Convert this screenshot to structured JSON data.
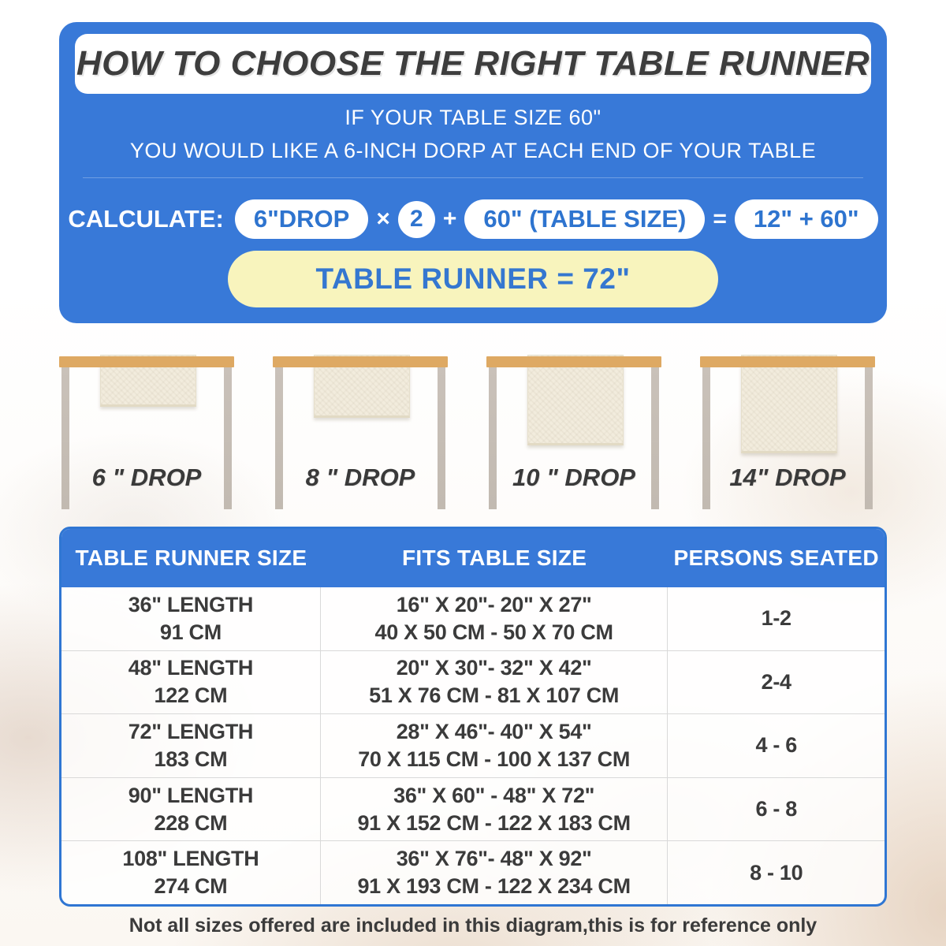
{
  "hero": {
    "title": "HOW TO CHOOSE THE RIGHT TABLE RUNNER",
    "subtitle_line1": "IF YOUR TABLE SIZE 60\"",
    "subtitle_line2": "YOU WOULD LIKE A 6-INCH DORP AT EACH END OF YOUR TABLE",
    "calc_label": "CALCULATE:",
    "drop_pill": "6\"DROP",
    "times_sign": "×",
    "multiplier": "2",
    "plus_sign": "+",
    "table_size_pill": "60\" (TABLE SIZE)",
    "equals_sign": "=",
    "sum_pill": "12\" + 60\"",
    "result": "TABLE RUNNER = 72\""
  },
  "drops": [
    {
      "label": "6 \" DROP"
    },
    {
      "label": "8 \" DROP"
    },
    {
      "label": "10 \" DROP"
    },
    {
      "label": "14\" DROP"
    }
  ],
  "size_table": {
    "headers": [
      "TABLE RUNNER SIZE",
      "FITS TABLE SIZE",
      "PERSONS SEATED"
    ],
    "rows": [
      {
        "size_in": "36\" LENGTH",
        "size_cm": "91 CM",
        "fits_in": "16\" X 20\"- 20\" X 27\"",
        "fits_cm": "40 X 50 CM - 50 X 70 CM",
        "persons": "1-2"
      },
      {
        "size_in": "48\" LENGTH",
        "size_cm": "122 CM",
        "fits_in": "20\" X 30\"- 32\" X 42\"",
        "fits_cm": "51 X 76 CM - 81 X 107 CM",
        "persons": "2-4"
      },
      {
        "size_in": "72\" LENGTH",
        "size_cm": "183 CM",
        "fits_in": "28\" X 46\"- 40\" X 54\"",
        "fits_cm": "70 X 115 CM - 100 X 137 CM",
        "persons": "4 - 6"
      },
      {
        "size_in": "90\" LENGTH",
        "size_cm": "228 CM",
        "fits_in": "36\" X 60\" - 48\" X 72\"",
        "fits_cm": "91 X 152 CM - 122 X 183 CM",
        "persons": "6 - 8"
      },
      {
        "size_in": "108\" LENGTH",
        "size_cm": "274 CM",
        "fits_in": "36\" X 76\"- 48\" X 92\"",
        "fits_cm": "91 X 193 CM - 122 X 234 CM",
        "persons": "8 - 10"
      }
    ]
  },
  "footnote": "Not all sizes offered are included in this diagram,this is for reference only",
  "colors": {
    "panel_blue": "#3879d8",
    "pill_text_blue": "#2e74cf",
    "result_yellow": "#f8f4bd",
    "tabletop_tan": "#dea963",
    "leg_gray": "#c9c1b9",
    "runner_beige": "#f2ecdd",
    "text_dark": "#3b3b3b"
  }
}
